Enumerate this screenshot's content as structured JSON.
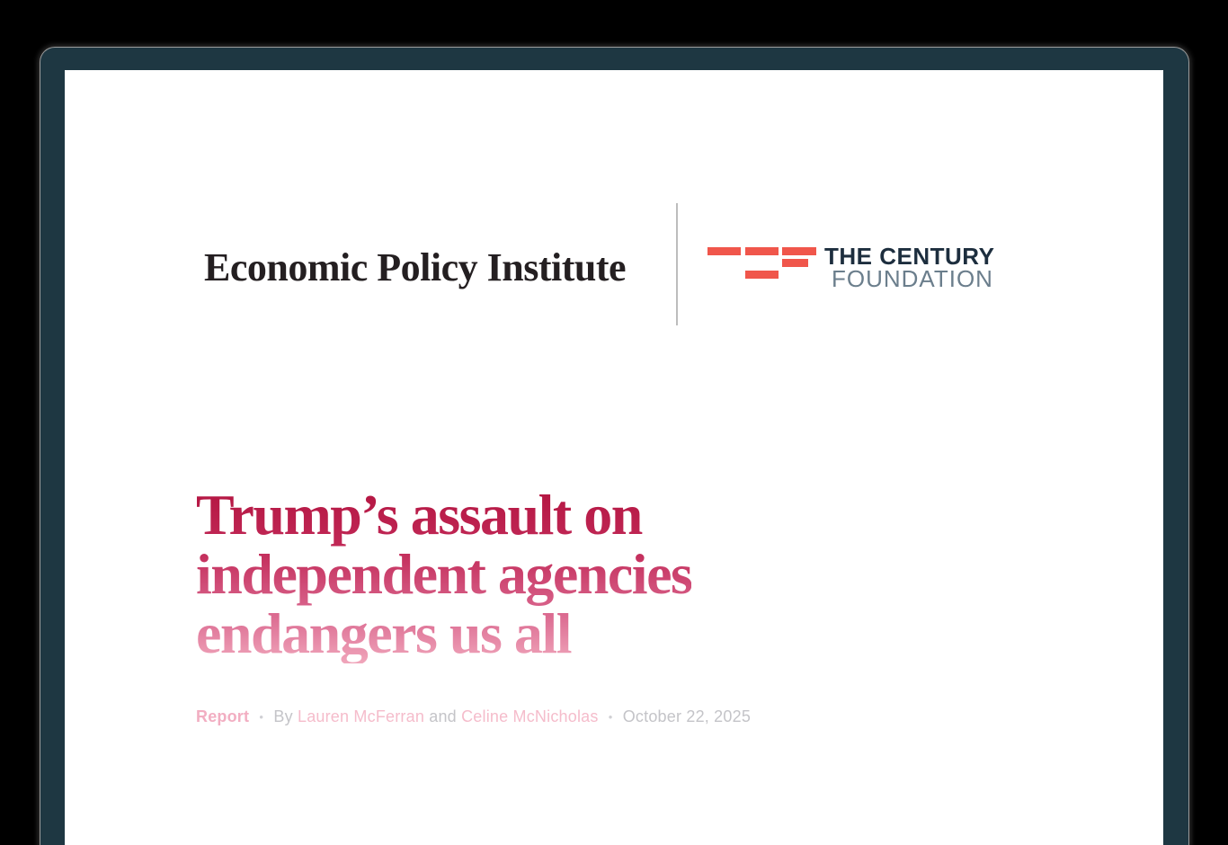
{
  "masthead": {
    "epi_name": "Economic Policy Institute",
    "tcf_line1": "THE CENTURY",
    "tcf_line2": "FOUNDATION"
  },
  "title": {
    "line1": "Trump’s assault on",
    "line2": "independent agencies",
    "line3": "endangers us all"
  },
  "byline": {
    "kicker": "Report",
    "separator1": "•",
    "by_label": "By",
    "author1": "Lauren McFerran",
    "and_label": "and",
    "author2": "Celine McNicholas",
    "separator2": "•",
    "date": "October 22, 2025"
  },
  "colors": {
    "outer_background": "#000000",
    "frame_teal": "#1e3742",
    "page_white": "#ffffff",
    "epi_ink": "#241f21",
    "tcf_red": "#f0564b",
    "tcf_navy": "#1d2e3e",
    "tcf_slate": "#6b7e8c",
    "divider_gray": "#bdbdbd",
    "title_gradient_top": "#b31440",
    "title_gradient_bottom": "#f0a6bb",
    "kicker_pink": "#f2aec2",
    "author_link_pink": "#f5bccb",
    "byline_gray": "#c4c4c8"
  }
}
